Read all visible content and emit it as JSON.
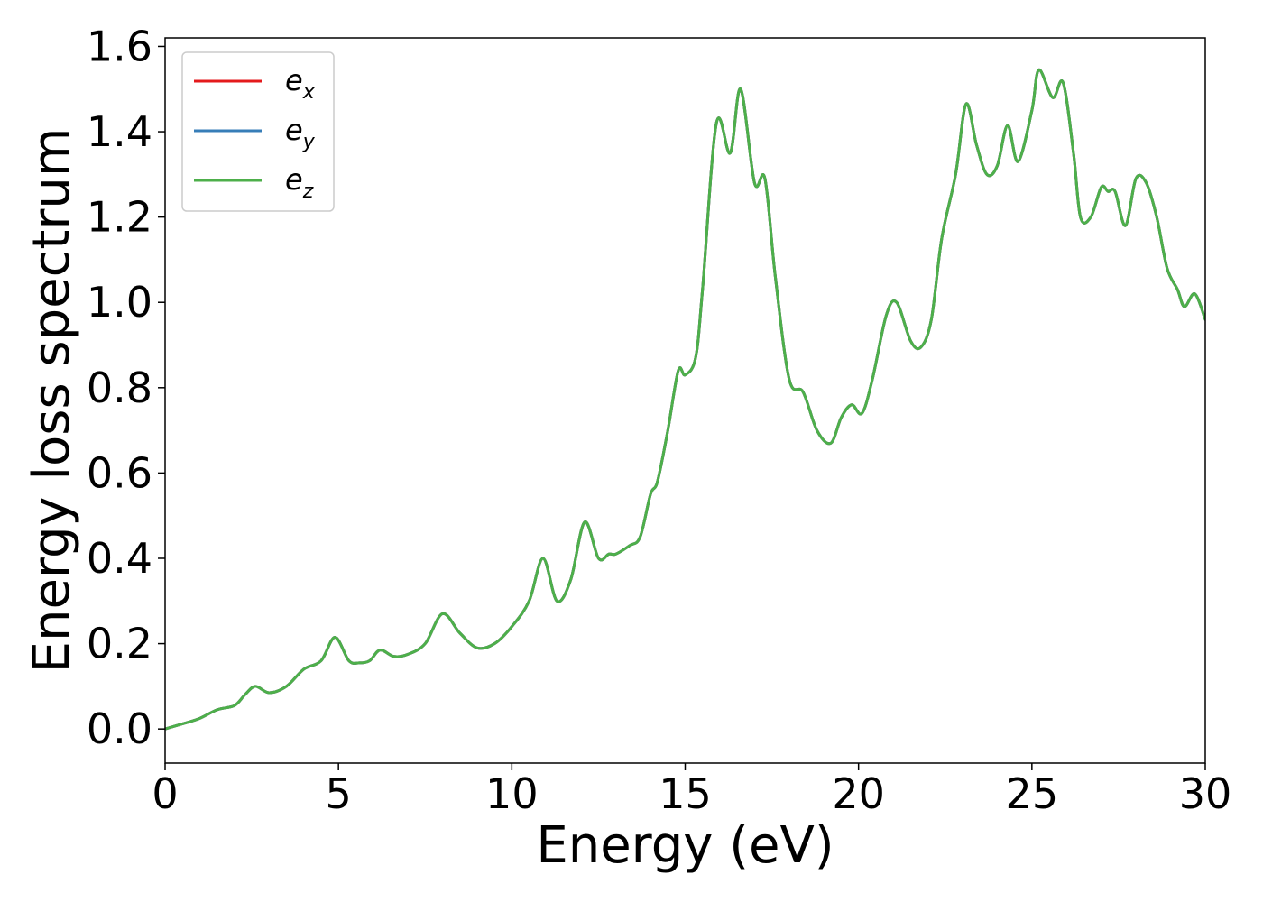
{
  "chart_data": {
    "type": "line",
    "title": "",
    "xlabel": "Energy (eV)",
    "ylabel": "Energy loss spectrum",
    "xlim": [
      0,
      30
    ],
    "ylim": [
      -0.08,
      1.62
    ],
    "xticks": [
      0,
      5,
      10,
      15,
      20,
      25,
      30
    ],
    "xtick_labels": [
      "0",
      "5",
      "10",
      "15",
      "20",
      "25",
      "30"
    ],
    "yticks": [
      0.0,
      0.2,
      0.4,
      0.6,
      0.8,
      1.0,
      1.2,
      1.4,
      1.6
    ],
    "ytick_labels": [
      "0.0",
      "0.2",
      "0.4",
      "0.6",
      "0.8",
      "1.0",
      "1.2",
      "1.4",
      "1.6"
    ],
    "grid": false,
    "legend_position": "top-left",
    "x": [
      0,
      0.5,
      1.0,
      1.5,
      2.0,
      2.3,
      2.6,
      3.0,
      3.5,
      4.0,
      4.5,
      4.9,
      5.3,
      5.6,
      5.9,
      6.2,
      6.6,
      7.0,
      7.5,
      8.0,
      8.5,
      9.0,
      9.5,
      10.0,
      10.5,
      10.9,
      11.3,
      11.7,
      12.1,
      12.5,
      12.8,
      13.0,
      13.4,
      13.7,
      14.0,
      14.2,
      14.5,
      14.8,
      15.0,
      15.3,
      15.5,
      15.9,
      16.3,
      16.6,
      17.0,
      17.3,
      17.6,
      18.0,
      18.4,
      18.8,
      19.2,
      19.5,
      19.8,
      20.1,
      20.4,
      20.8,
      21.1,
      21.5,
      21.8,
      22.1,
      22.4,
      22.8,
      23.1,
      23.4,
      23.7,
      24.0,
      24.3,
      24.6,
      25.0,
      25.2,
      25.6,
      25.9,
      26.2,
      26.4,
      26.7,
      27.0,
      27.2,
      27.4,
      27.7,
      28.0,
      28.3,
      28.6,
      28.9,
      29.2,
      29.4,
      29.7,
      30.0
    ],
    "series": [
      {
        "name": "e_x",
        "color": "#e41a1c",
        "y": [
          0.0,
          0.012,
          0.025,
          0.045,
          0.055,
          0.08,
          0.1,
          0.085,
          0.1,
          0.14,
          0.16,
          0.215,
          0.16,
          0.155,
          0.16,
          0.185,
          0.17,
          0.175,
          0.2,
          0.27,
          0.225,
          0.19,
          0.2,
          0.24,
          0.3,
          0.4,
          0.3,
          0.35,
          0.485,
          0.4,
          0.41,
          0.41,
          0.43,
          0.45,
          0.55,
          0.58,
          0.7,
          0.84,
          0.83,
          0.87,
          1.03,
          1.42,
          1.35,
          1.5,
          1.28,
          1.29,
          1.06,
          0.82,
          0.79,
          0.7,
          0.67,
          0.73,
          0.76,
          0.74,
          0.82,
          0.97,
          1.0,
          0.91,
          0.895,
          0.96,
          1.15,
          1.3,
          1.465,
          1.37,
          1.3,
          1.32,
          1.415,
          1.33,
          1.45,
          1.545,
          1.48,
          1.515,
          1.35,
          1.2,
          1.2,
          1.27,
          1.26,
          1.26,
          1.18,
          1.29,
          1.28,
          1.2,
          1.08,
          1.03,
          0.99,
          1.02,
          0.96
        ]
      },
      {
        "name": "e_y",
        "color": "#377eb8",
        "y": [
          0.0,
          0.012,
          0.025,
          0.045,
          0.055,
          0.08,
          0.1,
          0.085,
          0.1,
          0.14,
          0.16,
          0.215,
          0.16,
          0.155,
          0.16,
          0.185,
          0.17,
          0.175,
          0.2,
          0.27,
          0.225,
          0.19,
          0.2,
          0.24,
          0.3,
          0.4,
          0.3,
          0.35,
          0.485,
          0.4,
          0.41,
          0.41,
          0.43,
          0.45,
          0.55,
          0.58,
          0.7,
          0.84,
          0.83,
          0.87,
          1.03,
          1.42,
          1.35,
          1.5,
          1.28,
          1.29,
          1.06,
          0.82,
          0.79,
          0.7,
          0.67,
          0.73,
          0.76,
          0.74,
          0.82,
          0.97,
          1.0,
          0.91,
          0.895,
          0.96,
          1.15,
          1.3,
          1.465,
          1.37,
          1.3,
          1.32,
          1.415,
          1.33,
          1.45,
          1.545,
          1.48,
          1.515,
          1.35,
          1.2,
          1.2,
          1.27,
          1.26,
          1.26,
          1.18,
          1.29,
          1.28,
          1.2,
          1.08,
          1.03,
          0.99,
          1.02,
          0.96
        ]
      },
      {
        "name": "e_z",
        "color": "#4daf4a",
        "y": [
          0.0,
          0.012,
          0.025,
          0.045,
          0.055,
          0.08,
          0.1,
          0.085,
          0.1,
          0.14,
          0.16,
          0.215,
          0.16,
          0.155,
          0.16,
          0.185,
          0.17,
          0.175,
          0.2,
          0.27,
          0.225,
          0.19,
          0.2,
          0.24,
          0.3,
          0.4,
          0.3,
          0.35,
          0.485,
          0.4,
          0.41,
          0.41,
          0.43,
          0.45,
          0.55,
          0.58,
          0.7,
          0.84,
          0.83,
          0.87,
          1.03,
          1.42,
          1.35,
          1.5,
          1.28,
          1.29,
          1.06,
          0.82,
          0.79,
          0.7,
          0.67,
          0.73,
          0.76,
          0.74,
          0.82,
          0.97,
          1.0,
          0.91,
          0.895,
          0.96,
          1.15,
          1.3,
          1.465,
          1.37,
          1.3,
          1.32,
          1.415,
          1.33,
          1.45,
          1.545,
          1.48,
          1.515,
          1.35,
          1.2,
          1.2,
          1.27,
          1.26,
          1.26,
          1.18,
          1.29,
          1.28,
          1.2,
          1.08,
          1.03,
          0.99,
          1.02,
          0.96
        ]
      }
    ],
    "legend": [
      {
        "base": "e",
        "sub": "x",
        "color": "#e41a1c"
      },
      {
        "base": "e",
        "sub": "y",
        "color": "#377eb8"
      },
      {
        "base": "e",
        "sub": "z",
        "color": "#4daf4a"
      }
    ]
  }
}
